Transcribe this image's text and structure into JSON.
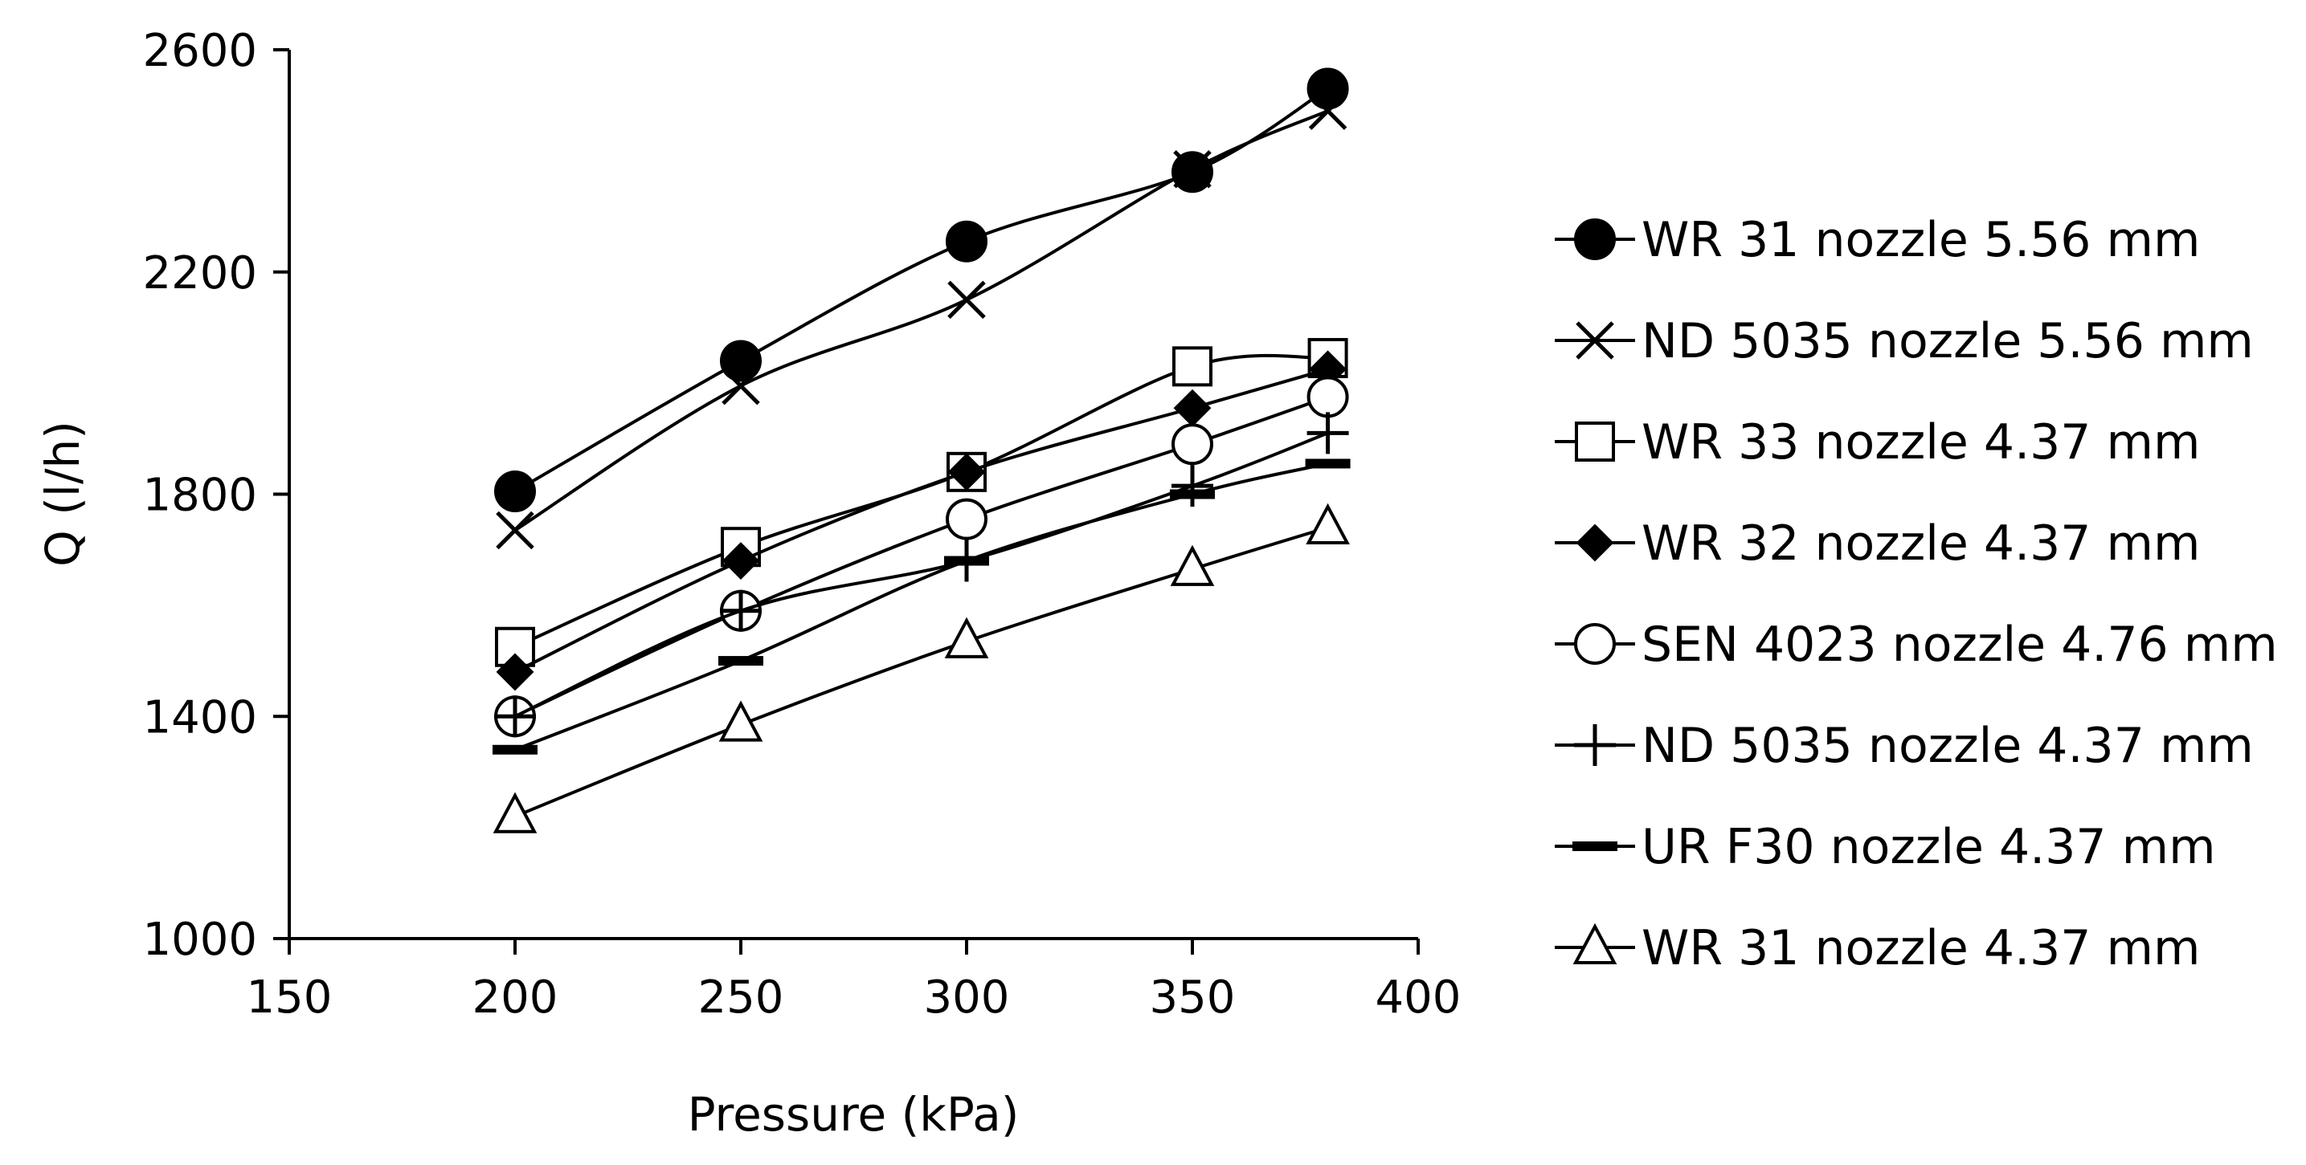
{
  "chart_data": {
    "type": "line",
    "title": "",
    "xlabel": "Pressure (kPa)",
    "ylabel": "Q (l/h)",
    "xlim": [
      150,
      400
    ],
    "ylim": [
      1000,
      2600
    ],
    "xticks": [
      150,
      200,
      250,
      300,
      350,
      400
    ],
    "yticks": [
      1000,
      1400,
      1800,
      2200,
      2600
    ],
    "grid": false,
    "legend_position": "right",
    "x": [
      200,
      250,
      300,
      350,
      380
    ],
    "series": [
      {
        "name": "WR 31 nozzle 5.56 mm",
        "marker": "filled-circle",
        "values": [
          1805,
          2040,
          2255,
          2380,
          2530
        ]
      },
      {
        "name": "ND 5035 nozzle 5.56 mm",
        "marker": "x",
        "values": [
          1735,
          1995,
          2150,
          2385,
          2490
        ]
      },
      {
        "name": "WR 33 nozzle 4.37 mm",
        "marker": "open-square",
        "values": [
          1525,
          1705,
          1840,
          2030,
          2045
        ]
      },
      {
        "name": "WR 32 nozzle 4.37 mm",
        "marker": "filled-diamond",
        "values": [
          1480,
          1680,
          1840,
          1955,
          2025
        ]
      },
      {
        "name": "SEN 4023 nozzle 4.76 mm",
        "marker": "open-circle",
        "values": [
          1400,
          1590,
          1755,
          1890,
          1975
        ]
      },
      {
        "name": "ND 5035 nozzle 4.37 mm",
        "marker": "plus",
        "values": [
          1400,
          1590,
          1680,
          1815,
          1910
        ]
      },
      {
        "name": "UR F30 nozzle 4.37 mm",
        "marker": "dash",
        "values": [
          1340,
          1500,
          1680,
          1800,
          1855
        ]
      },
      {
        "name": "WR 31 nozzle 4.37 mm",
        "marker": "open-triangle",
        "values": [
          1220,
          1385,
          1535,
          1665,
          1740
        ]
      }
    ]
  }
}
